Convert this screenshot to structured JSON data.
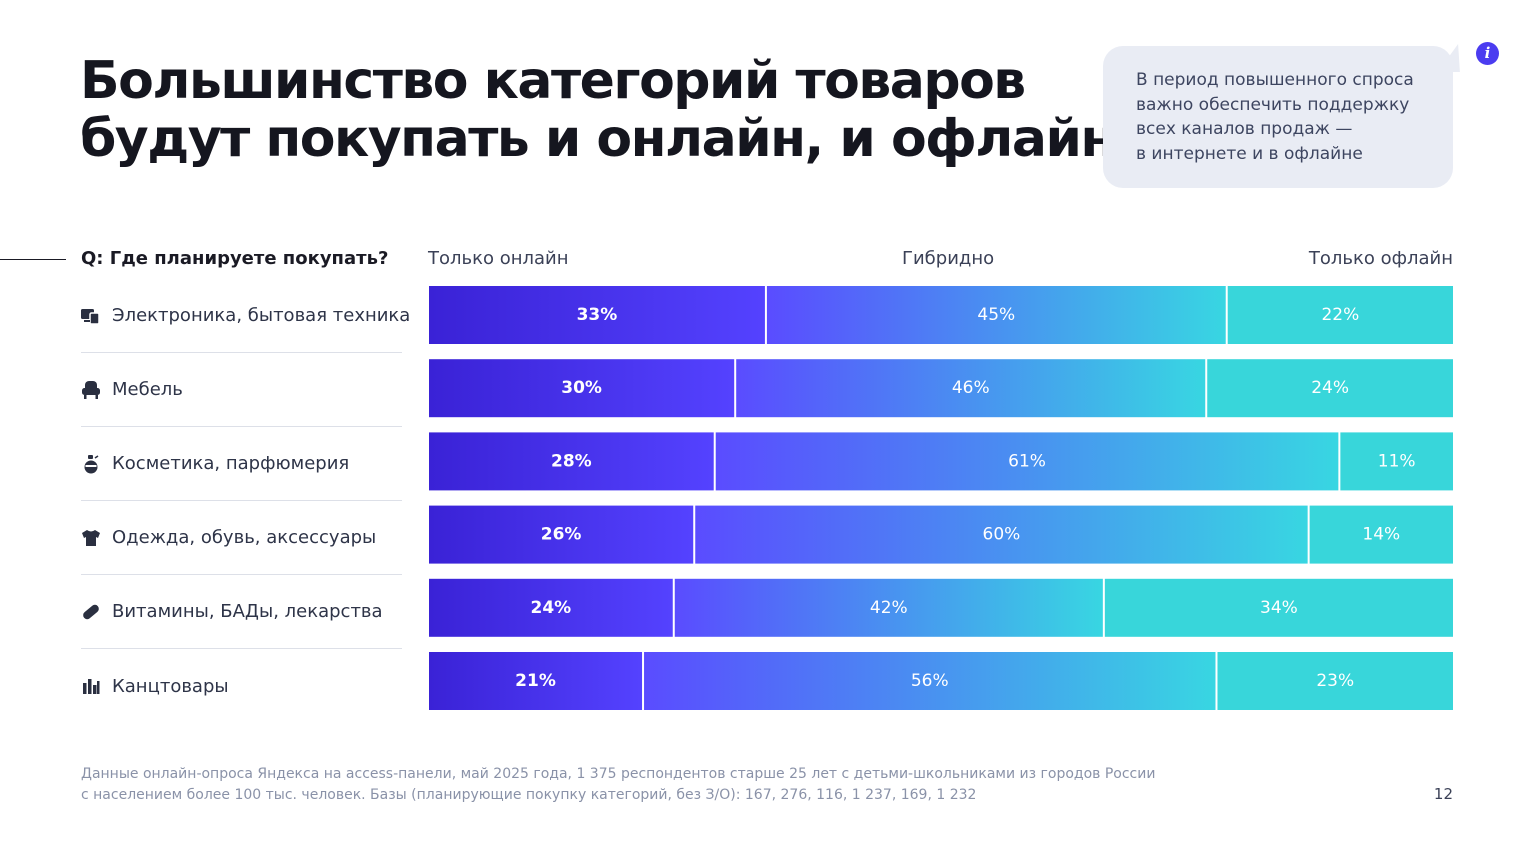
{
  "title_lines": [
    "Большинство категорий товаров",
    "будут покупать и онлайн, и офлайн"
  ],
  "callout": {
    "lines": [
      "В период повышенного спроса",
      "важно обеспечить поддержку",
      "всех каналов продаж —",
      "в интернете и в офлайне"
    ],
    "icon": "info-icon",
    "icon_glyph": "i"
  },
  "question": "Q: Где планируете покупать?",
  "footnote_lines": [
    "Данные онлайн-опроса Яндекса на access-панели, май 2025 года, 1 375 респондентов старше 25 лет с детьми-школьниками из городов России",
    "с населением более 100 тыс. человек. Базы (планирующие покупку категорий, без З/О): 167, 276,  116,  1 237,  169, 1 232"
  ],
  "page_number": "12",
  "colors": {
    "online_start": "#3a22d6",
    "online_end": "#5442ff",
    "hybrid_start": "#5a4cff",
    "hybrid_end": "#38d6e2",
    "offline": "#38d6da"
  },
  "chart_data": {
    "type": "bar",
    "orientation": "horizontal",
    "stacked": true,
    "normalized_100": true,
    "categories": [
      "Электроника, бытовая техника",
      "Мебель",
      "Косметика, парфюмерия",
      "Одежда, обувь, аксессуары",
      "Витамины, БАДы, лекарства",
      "Канцтовары"
    ],
    "category_icons": [
      "devices-icon",
      "armchair-icon",
      "cosmetics-bottle-icon",
      "tshirt-icon",
      "pill-icon",
      "stationery-icon"
    ],
    "series": [
      {
        "name": "Только онлайн",
        "values": [
          33,
          30,
          28,
          26,
          24,
          21
        ],
        "labels": [
          "33%",
          "30%",
          "28%",
          "26%",
          "24%",
          "21%"
        ]
      },
      {
        "name": "Гибридно",
        "values": [
          45,
          46,
          61,
          60,
          42,
          56
        ],
        "labels": [
          "45%",
          "46%",
          "61%",
          "60%",
          "42%",
          "56%"
        ]
      },
      {
        "name": "Только офлайн",
        "values": [
          22,
          24,
          11,
          14,
          34,
          23
        ],
        "labels": [
          "22%",
          "24%",
          "11%",
          "14%",
          "34%",
          "23%"
        ]
      }
    ],
    "xlim": [
      0,
      100
    ],
    "legend": "top"
  }
}
